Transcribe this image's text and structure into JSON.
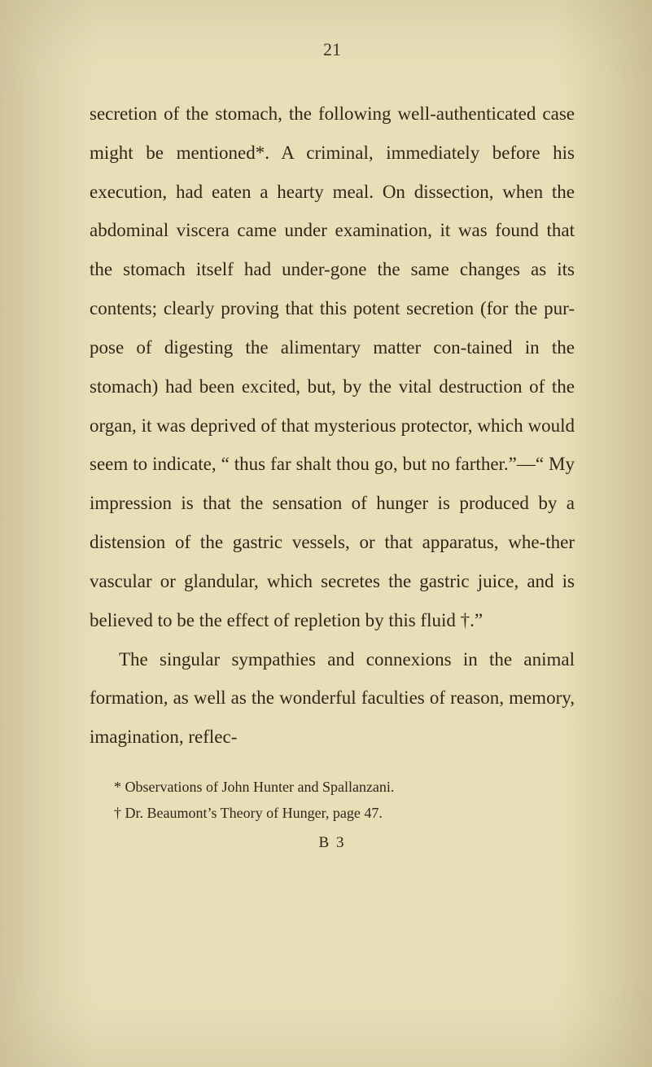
{
  "page_number": "21",
  "paragraphs": [
    {
      "text": "secretion of the stomach, the following well-authenticated case might be mentioned*. A criminal, immediately before his execution, had eaten a hearty meal. On dissection, when the abdominal viscera came under examination, it was found that the stomach itself had under-gone the same changes as its contents; clearly proving that this potent secretion (for the pur-pose of digesting the alimentary matter con-tained in the stomach) had been excited, but, by the vital destruction of the organ, it was deprived of that mysterious protector, which would seem to indicate, “ thus far shalt thou go, but no farther.”—“ My impression is that the sensation of hunger is produced by a distension of the gastric vessels, or that apparatus, whe-ther vascular or glandular, which secretes the gastric juice, and is believed to be the effect of repletion by this fluid †.”",
      "indent": false
    },
    {
      "text": "The singular sympathies and connexions in the animal formation, as well as the wonderful faculties of reason, memory, imagination, reflec-",
      "indent": true
    }
  ],
  "footnotes": [
    "* Observations of John Hunter and Spallanzani.",
    "† Dr. Beaumont’s Theory of Hunger, page 47."
  ],
  "signature": "B 3",
  "colors": {
    "text": "#2e2818",
    "background_light": "#e8dfb8",
    "background_edge": "#d4ca9e"
  }
}
